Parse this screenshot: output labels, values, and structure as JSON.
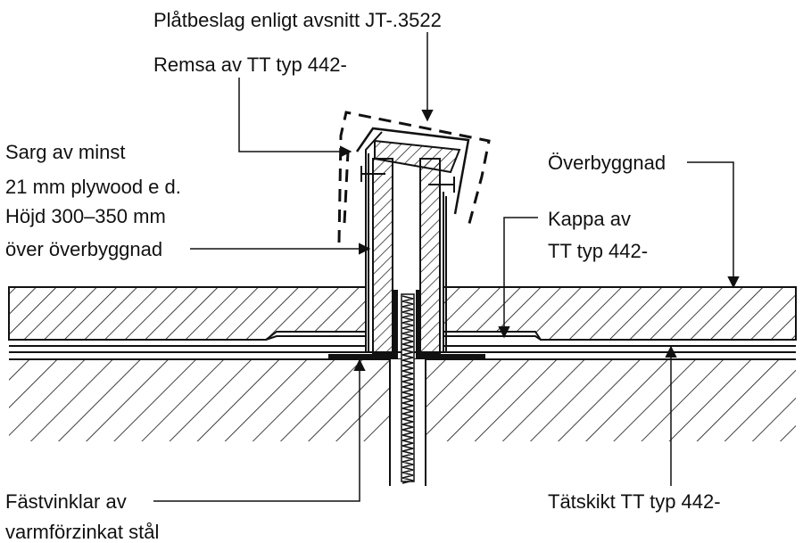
{
  "labels": {
    "platbeslag": "Plåtbeslag enligt avsnitt JT-.3522",
    "remsa": "Remsa av TT typ 442-",
    "sarg_line1": "Sarg av minst",
    "sarg_line2": "21 mm plywood e d.",
    "sarg_line3": "Höjd 300–350 mm",
    "sarg_line4": "över överbyggnad",
    "overbyggnad": "Överbyggnad",
    "kappa_line1": "Kappa av",
    "kappa_line2": "TT typ 442-",
    "fastvinklar_line1": "Fästvinklar av",
    "fastvinklar_line2": "varmförzinkat stål",
    "tatskikt": "Tätskikt TT typ 442-"
  },
  "colors": {
    "ink": "#111111",
    "background": "#ffffff"
  }
}
